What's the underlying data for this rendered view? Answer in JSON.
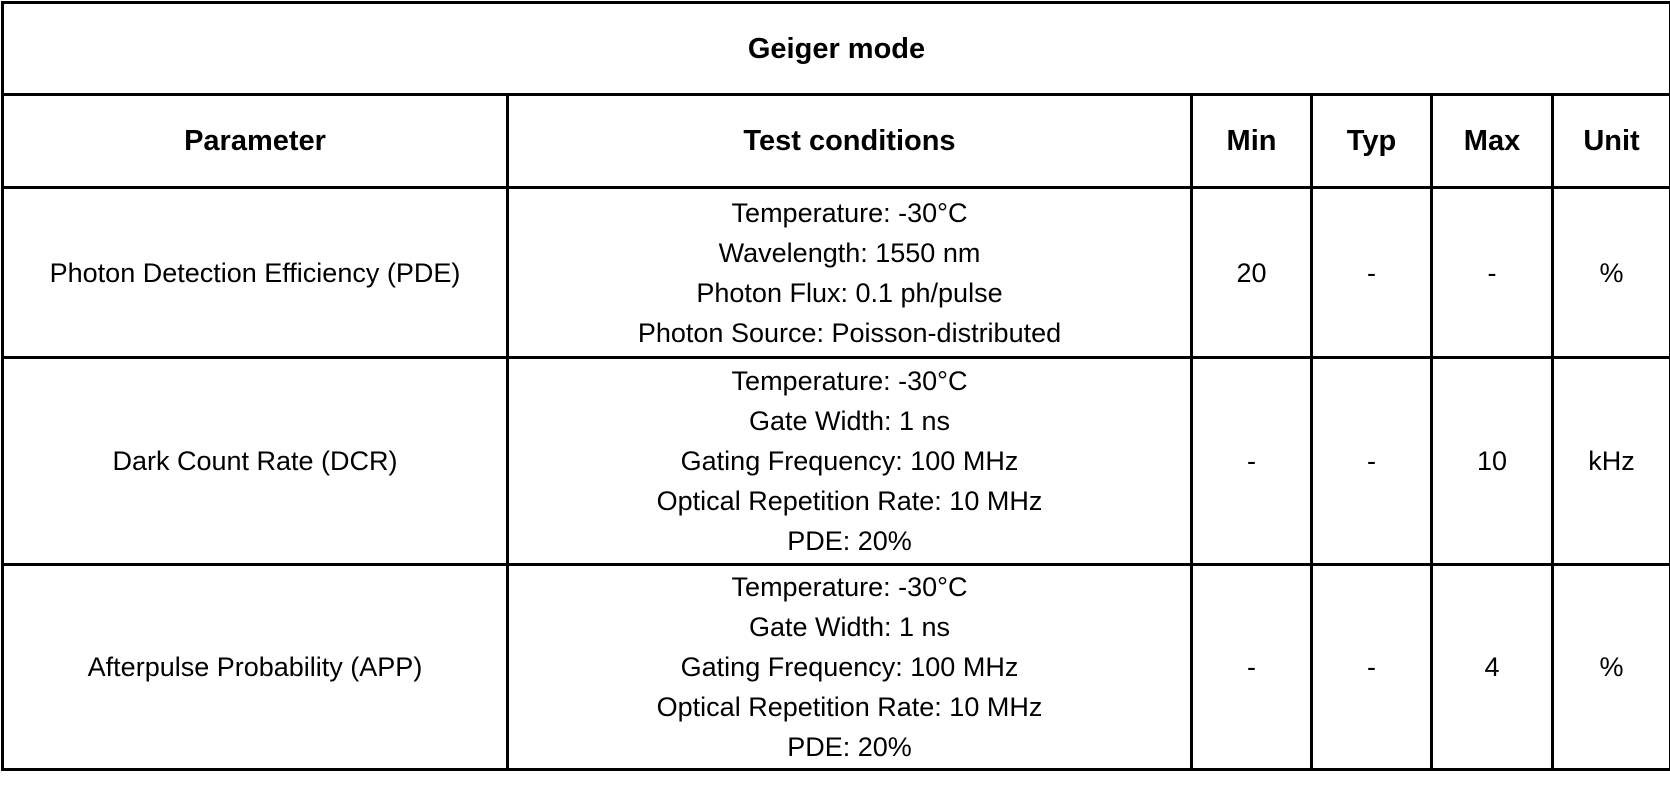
{
  "title": "Geiger mode",
  "headers": [
    "Parameter",
    "Test conditions",
    "Min",
    "Typ",
    "Max",
    "Unit"
  ],
  "rows": [
    {
      "parameter": "Photon Detection Efficiency (PDE)",
      "conditions": [
        "Temperature: -30°C",
        "Wavelength: 1550 nm",
        "Photon Flux: 0.1 ph/pulse",
        "Photon Source: Poisson-distributed"
      ],
      "min": "20",
      "typ": "-",
      "max": "-",
      "unit": "%"
    },
    {
      "parameter": "Dark Count Rate (DCR)",
      "conditions": [
        "Temperature: -30°C",
        "Gate Width: 1 ns",
        "Gating Frequency: 100 MHz",
        "Optical Repetition Rate: 10 MHz",
        "PDE: 20%"
      ],
      "min": "-",
      "typ": "-",
      "max": "10",
      "unit": "kHz"
    },
    {
      "parameter": "Afterpulse Probability (APP)",
      "conditions": [
        "Temperature: -30°C",
        "Gate Width: 1 ns",
        "Gating Frequency: 100 MHz",
        "Optical Repetition Rate: 10 MHz",
        "PDE: 20%"
      ],
      "min": "-",
      "typ": "-",
      "max": "4",
      "unit": "%"
    }
  ]
}
